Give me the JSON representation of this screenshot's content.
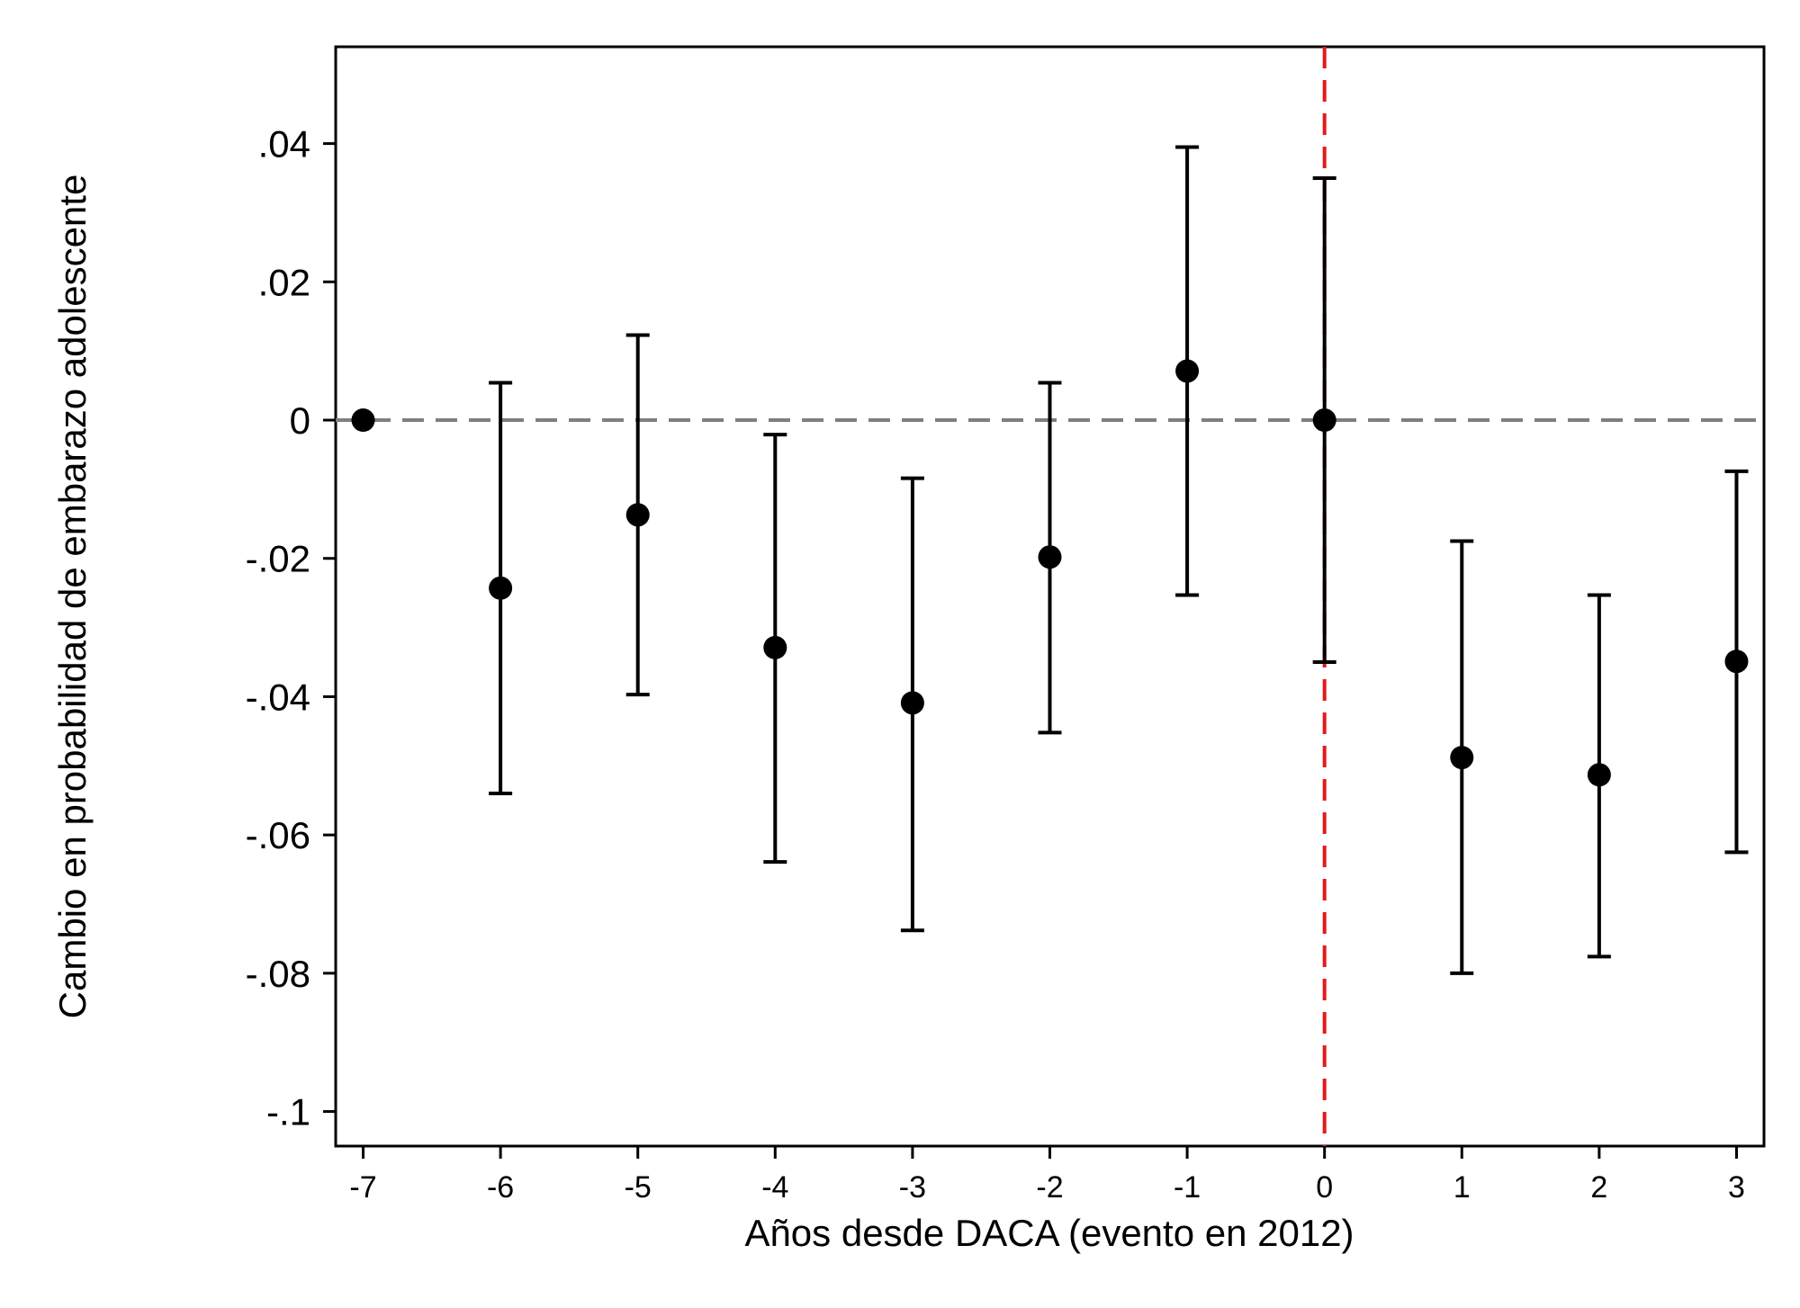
{
  "chart_data": {
    "type": "scatter",
    "title": "",
    "xlabel": "Años desde DACA (evento en 2012)",
    "ylabel": "Cambio en probabilidad de embarazo adolescente",
    "xlim": [
      -7.2,
      3.2
    ],
    "ylim": [
      -0.105,
      0.054
    ],
    "x_ticks": [
      -7,
      -6,
      -5,
      -4,
      -3,
      -2,
      -1,
      0,
      1,
      2,
      3
    ],
    "x_tick_labels": [
      "-7",
      "-6",
      "-5",
      "-4",
      "-3",
      "-2",
      "-1",
      "0",
      "1",
      "2",
      "3"
    ],
    "y_ticks": [
      0.04,
      0.02,
      0,
      -0.02,
      -0.04,
      -0.06,
      -0.08,
      -0.1
    ],
    "y_tick_labels": [
      ".04",
      ".02",
      "0",
      "-.02",
      "-.04",
      "-.06",
      "-.08",
      "-.1"
    ],
    "grid": false,
    "reference_lines": {
      "horizontal": {
        "y": 0,
        "style": "dashed",
        "color": "#7f7f7f"
      },
      "vertical": {
        "x": 0,
        "style": "dashed",
        "color": "#e41a1c"
      }
    },
    "series": [
      {
        "points": [
          {
            "x": -7,
            "y": 0.0,
            "lower": null,
            "upper": null
          },
          {
            "x": -6,
            "y": -0.0243,
            "lower": -0.054,
            "upper": 0.0054
          },
          {
            "x": -5,
            "y": -0.0137,
            "lower": -0.0397,
            "upper": 0.0123
          },
          {
            "x": -4,
            "y": -0.0329,
            "lower": -0.0639,
            "upper": -0.0021
          },
          {
            "x": -3,
            "y": -0.0409,
            "lower": -0.0738,
            "upper": -0.0084
          },
          {
            "x": -2,
            "y": -0.0198,
            "lower": -0.0452,
            "upper": 0.0054
          },
          {
            "x": -1,
            "y": 0.0071,
            "lower": -0.0253,
            "upper": 0.0395
          },
          {
            "x": 0,
            "y": 0.0,
            "lower": -0.035,
            "upper": 0.035
          },
          {
            "x": 1,
            "y": -0.0488,
            "lower": -0.08,
            "upper": -0.0175
          },
          {
            "x": 2,
            "y": -0.0513,
            "lower": -0.0776,
            "upper": -0.0253
          },
          {
            "x": 3,
            "y": -0.0349,
            "lower": -0.0625,
            "upper": -0.0074
          }
        ]
      }
    ],
    "colors": {
      "points": "#000000",
      "zero_line": "#7f7f7f",
      "event_line": "#e41a1c"
    }
  }
}
